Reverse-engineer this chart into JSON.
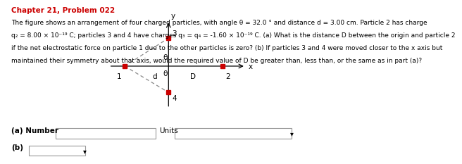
{
  "title": "Chapter 21, Problem 022",
  "line1": "The figure shows an arrangement of four charged particles, with angle θ = 32.0 ° and distance d = 3.00 cm. Particle 2 has charge",
  "line2": "q₂ = 8.00 × 10⁻¹⁹ C; particles 3 and 4 have charges q₃ = q₄ = -1.60 × 10⁻¹⁹ C. (a) What is the distance D between the origin and particle 2",
  "line3": "if the net electrostatic force on particle 1 due to the other particles is zero? (b) If particles 3 and 4 were moved closer to the x axis but",
  "line4": "maintained their symmetry about that axis, would the required value of D be greater than, less than, or the same as in part (a)?",
  "bg_color": "#ffffff",
  "title_color": "#cc0000",
  "text_color": "#000000",
  "particle_color": "#cc0000",
  "axis_color": "#000000",
  "dashed_color": "#888888",
  "p1": [
    -0.5,
    0.0
  ],
  "p2": [
    0.62,
    0.0
  ],
  "p3": [
    0.0,
    0.32
  ],
  "p4": [
    0.0,
    -0.3
  ],
  "d_label": "d",
  "theta_label": "θ",
  "D_label": "D",
  "x_label": "x",
  "y_label": "y",
  "label1": "1",
  "label2": "2",
  "label3": "3",
  "label4": "4"
}
